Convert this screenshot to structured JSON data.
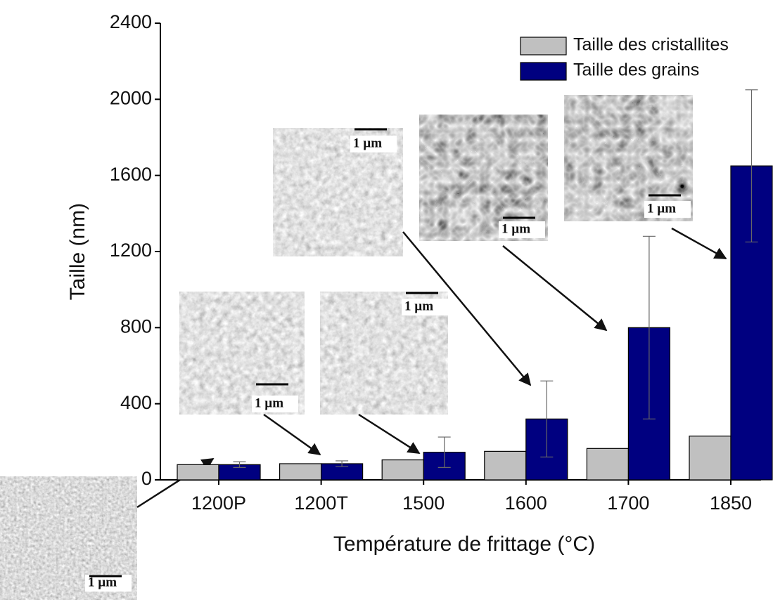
{
  "chart_data": {
    "type": "bar",
    "xlabel": "Température de frittage (°C)",
    "ylabel": "Taille (nm)",
    "categories": [
      "1200P",
      "1200T",
      "1500",
      "1600",
      "1700",
      "1850"
    ],
    "series": [
      {
        "name": "Taille des cristallites",
        "color": "#c0c0c0",
        "values": [
          80,
          85,
          105,
          150,
          165,
          230
        ]
      },
      {
        "name": "Taille des grains",
        "color": "#000080",
        "values": [
          80,
          85,
          145,
          320,
          800,
          1650
        ],
        "errors": [
          15,
          15,
          80,
          200,
          480,
          400
        ]
      }
    ],
    "ylim": [
      0,
      2400
    ],
    "yticks": [
      0,
      400,
      800,
      1200,
      1600,
      2000,
      2400
    ],
    "legend": "upper right",
    "annotations": [
      "1 µm",
      "1 µm",
      "1 µm",
      "1 µm",
      "1 µm",
      "1 µm"
    ]
  }
}
